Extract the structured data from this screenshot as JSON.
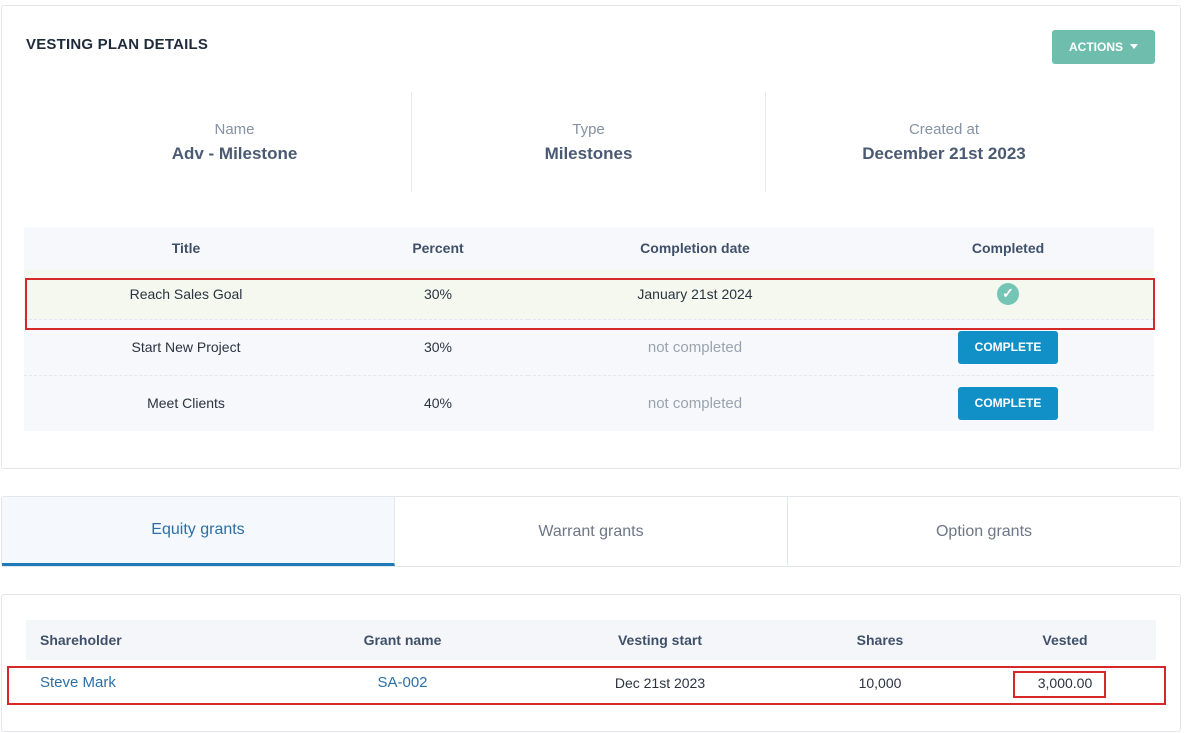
{
  "plan": {
    "title": "VESTING PLAN DETAILS",
    "actions_label": "ACTIONS",
    "info": [
      {
        "label": "Name",
        "value": "Adv - Milestone"
      },
      {
        "label": "Type",
        "value": "Milestones"
      },
      {
        "label": "Created at",
        "value": "December 21st 2023"
      }
    ]
  },
  "milestones": {
    "headers": [
      "Title",
      "Percent",
      "Completion date",
      "Completed"
    ],
    "rows": [
      {
        "title": "Reach Sales Goal",
        "percent": "30%",
        "date": "January 21st 2024",
        "completed": true
      },
      {
        "title": "Start New Project",
        "percent": "30%",
        "date": "not completed",
        "action": "COMPLETE"
      },
      {
        "title": "Meet Clients",
        "percent": "40%",
        "date": "not completed",
        "action": "COMPLETE"
      }
    ]
  },
  "tabs": [
    {
      "label": "Equity grants",
      "active": true
    },
    {
      "label": "Warrant grants",
      "active": false
    },
    {
      "label": "Option grants",
      "active": false
    }
  ],
  "grants": {
    "headers": [
      "Shareholder",
      "Grant name",
      "Vesting start",
      "Shares",
      "Vested"
    ],
    "rows": [
      {
        "shareholder": "Steve Mark",
        "grant_name": "SA-002",
        "vesting_start": "Dec 21st 2023",
        "shares": "10,000",
        "vested": "3,000.00"
      }
    ]
  },
  "colors": {
    "actions": "#6fbdad",
    "complete_button": "#1190c8",
    "check": "#75c5b5",
    "highlight": "#d62828",
    "active_tab": "#1f7ab8"
  },
  "icons": {
    "caret": "caret-down-icon",
    "completed": "check-circle-icon"
  }
}
